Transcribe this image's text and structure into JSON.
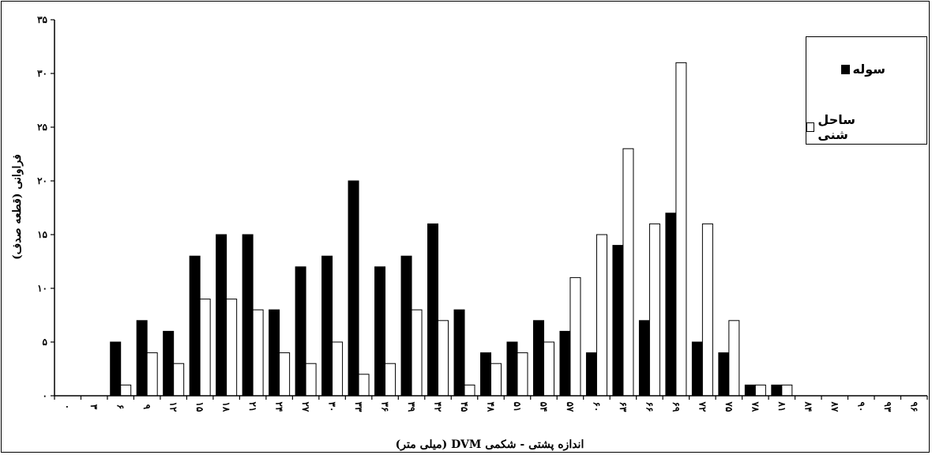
{
  "chart_data": {
    "type": "bar",
    "xlabel": "اندازه پشتی - شکمی DVM (میلی متر)",
    "ylabel": "فراوانی (قطعه صدف)",
    "ylim": [
      0,
      35
    ],
    "yticks": [
      {
        "value": 0,
        "label": "۰"
      },
      {
        "value": 5,
        "label": "۵"
      },
      {
        "value": 10,
        "label": "۱۰"
      },
      {
        "value": 15,
        "label": "۱۵"
      },
      {
        "value": 20,
        "label": "۲۰"
      },
      {
        "value": 25,
        "label": "۲۵"
      },
      {
        "value": 30,
        "label": "۳۰"
      },
      {
        "value": 35,
        "label": "۳۵"
      }
    ],
    "categories": [
      "۰",
      "۳",
      "۶",
      "۹",
      "۱۲",
      "۱۵",
      "۱۸",
      "۲۱",
      "۲۴",
      "۲۷",
      "۳۰",
      "۳۳",
      "۳۶",
      "۳۹",
      "۴۲",
      "۴۵",
      "۴۸",
      "۵۱",
      "۵۴",
      "۵۷",
      "۶۰",
      "۶۳",
      "۶۶",
      "۶۹",
      "۷۲",
      "۷۵",
      "۷۸",
      "۸۱",
      "۸۴",
      "۸۷",
      "۹۰",
      "۹۳",
      "۹۶"
    ],
    "series": [
      {
        "name": "سوله",
        "color": "#000000",
        "values": [
          0,
          0,
          5,
          7,
          6,
          13,
          15,
          15,
          8,
          12,
          13,
          20,
          12,
          13,
          16,
          8,
          4,
          5,
          7,
          6,
          4,
          14,
          7,
          17,
          5,
          4,
          1,
          1,
          0,
          0,
          0,
          0,
          0
        ]
      },
      {
        "name": "ساحل شنی",
        "color": "#ffffff",
        "values": [
          0,
          0,
          1,
          4,
          3,
          9,
          9,
          8,
          4,
          3,
          5,
          2,
          3,
          8,
          7,
          1,
          3,
          4,
          5,
          11,
          15,
          23,
          16,
          31,
          16,
          7,
          1,
          1,
          0,
          0,
          0,
          0,
          0
        ]
      }
    ],
    "legend": "top-right",
    "grid": false
  }
}
